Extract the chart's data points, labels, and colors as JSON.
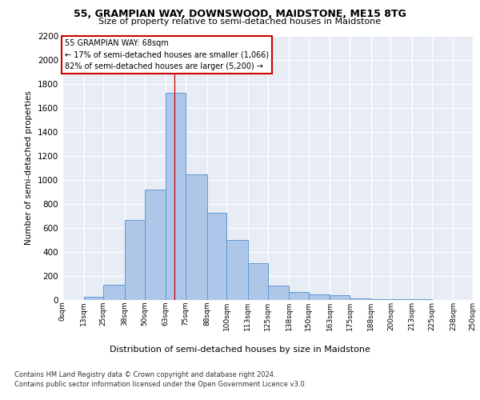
{
  "title1": "55, GRAMPIAN WAY, DOWNSWOOD, MAIDSTONE, ME15 8TG",
  "title2": "Size of property relative to semi-detached houses in Maidstone",
  "xlabel": "Distribution of semi-detached houses by size in Maidstone",
  "ylabel": "Number of semi-detached properties",
  "footer1": "Contains HM Land Registry data © Crown copyright and database right 2024.",
  "footer2": "Contains public sector information licensed under the Open Government Licence v3.0.",
  "annotation_title": "55 GRAMPIAN WAY: 68sqm",
  "annotation_line1": "← 17% of semi-detached houses are smaller (1,066)",
  "annotation_line2": "82% of semi-detached houses are larger (5,200) →",
  "bar_edges": [
    0,
    13,
    25,
    38,
    50,
    63,
    75,
    88,
    100,
    113,
    125,
    138,
    150,
    163,
    175,
    188,
    200,
    213,
    225,
    238,
    250
  ],
  "bar_heights": [
    0,
    25,
    125,
    665,
    920,
    1725,
    1050,
    730,
    500,
    310,
    120,
    65,
    50,
    40,
    15,
    10,
    5,
    5,
    0,
    0
  ],
  "bar_color": "#aec6e8",
  "bar_edge_color": "#5b9bd5",
  "property_size": 68,
  "ylim_max": 2200,
  "xlim_max": 250,
  "fig_bg_color": "#ffffff",
  "plot_bg_color": "#e8edf5",
  "grid_color": "#ffffff",
  "annot_edge_color": "#cc0000",
  "vline_color": "#cc0000",
  "tick_labels": [
    "0sqm",
    "13sqm",
    "25sqm",
    "38sqm",
    "50sqm",
    "63sqm",
    "75sqm",
    "88sqm",
    "100sqm",
    "113sqm",
    "125sqm",
    "138sqm",
    "150sqm",
    "163sqm",
    "175sqm",
    "188sqm",
    "200sqm",
    "213sqm",
    "225sqm",
    "238sqm",
    "250sqm"
  ]
}
